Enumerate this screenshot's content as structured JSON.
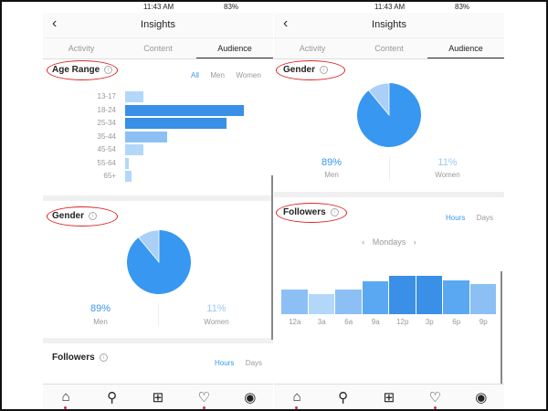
{
  "status": {
    "time": "11:43 AM",
    "battery": "83%"
  },
  "header": {
    "title": "Insights",
    "back_icon": "chevron-left-icon"
  },
  "tabs": [
    {
      "label": "Activity"
    },
    {
      "label": "Content"
    },
    {
      "label": "Audience",
      "active": true
    }
  ],
  "age_range": {
    "title": "Age Range",
    "filters": [
      "All",
      "Men",
      "Women"
    ],
    "active_filter": "All",
    "chart_data": {
      "type": "bar",
      "orientation": "horizontal",
      "categories": [
        "13-17",
        "18-24",
        "25-34",
        "35-44",
        "45-54",
        "55-64",
        "65+"
      ],
      "values": [
        3,
        20,
        17,
        7,
        3,
        0.6,
        1
      ]
    }
  },
  "gender": {
    "title": "Gender",
    "men_pct": "89%",
    "men_label": "Men",
    "women_pct": "11%",
    "women_label": "Women",
    "chart_data": {
      "type": "pie",
      "categories": [
        "Men",
        "Women"
      ],
      "values": [
        89,
        11
      ]
    }
  },
  "followers": {
    "title": "Followers",
    "toggles": [
      "Hours",
      "Days"
    ],
    "active": "Hours",
    "day_label": "Mondays",
    "chart_data": {
      "type": "bar",
      "categories": [
        "12a",
        "3a",
        "6a",
        "9a",
        "12p",
        "3p",
        "6p",
        "9p"
      ],
      "values": [
        27,
        22,
        27,
        36,
        42,
        42,
        37,
        33
      ]
    }
  },
  "colors": {
    "accent": "#3897f0",
    "dark_bar": "#3a8fe6",
    "light_bar": "#aad0f7",
    "annotation": "#dd2222"
  },
  "nav": [
    "home-icon",
    "search-icon",
    "add-icon",
    "heart-icon",
    "profile-icon"
  ]
}
